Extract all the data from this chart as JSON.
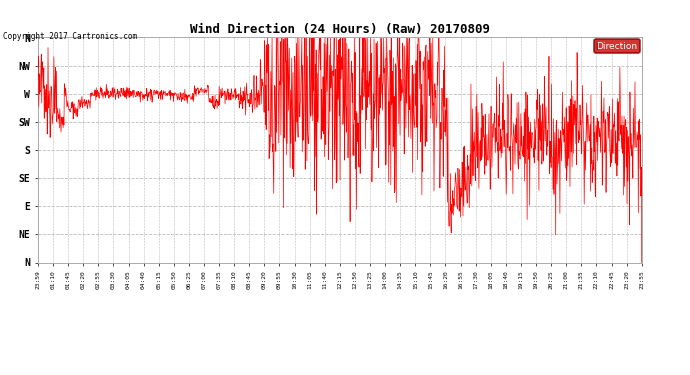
{
  "title": "Wind Direction (24 Hours) (Raw) 20170809",
  "copyright": "Copyright 2017 Cartronics.com",
  "legend_label": "Direction",
  "background_color": "#ffffff",
  "grid_color": "#bbbbbb",
  "line_color": "#ff0000",
  "ytick_labels": [
    "N",
    "NW",
    "W",
    "SW",
    "S",
    "SE",
    "E",
    "NE",
    "N"
  ],
  "ytick_values": [
    360,
    315,
    270,
    225,
    180,
    135,
    90,
    45,
    0
  ],
  "ylim": [
    0,
    360
  ],
  "xlabel_times": [
    "23:59",
    "01:10",
    "01:45",
    "02:20",
    "02:55",
    "03:30",
    "04:05",
    "04:40",
    "05:15",
    "05:50",
    "06:25",
    "07:00",
    "07:35",
    "08:10",
    "08:45",
    "09:20",
    "09:55",
    "10:30",
    "11:05",
    "11:40",
    "12:15",
    "12:50",
    "13:25",
    "14:00",
    "14:35",
    "15:10",
    "15:45",
    "16:20",
    "16:55",
    "17:30",
    "18:05",
    "18:40",
    "19:15",
    "19:50",
    "20:25",
    "21:00",
    "21:35",
    "22:10",
    "22:45",
    "23:20",
    "23:55"
  ],
  "figsize": [
    6.9,
    3.75
  ],
  "dpi": 100
}
